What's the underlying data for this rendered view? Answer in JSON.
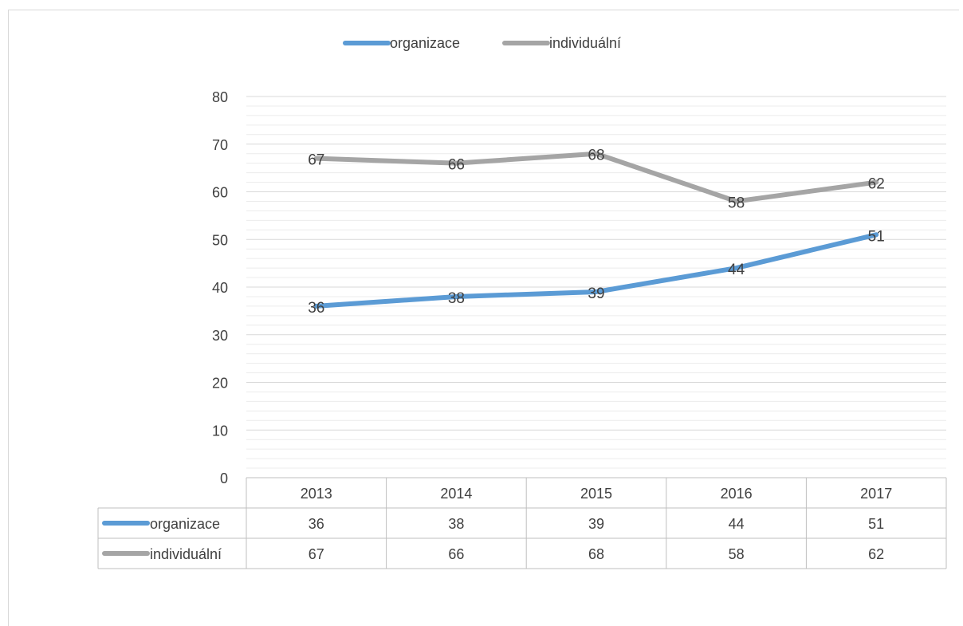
{
  "chart_data": {
    "type": "line",
    "title": "",
    "xlabel": "",
    "ylabel": "",
    "categories": [
      "2013",
      "2014",
      "2015",
      "2016",
      "2017"
    ],
    "series": [
      {
        "name": "organizace",
        "color": "#5b9bd5",
        "values": [
          36,
          38,
          39,
          44,
          51
        ]
      },
      {
        "name": "individuální",
        "color": "#a5a5a5",
        "values": [
          67,
          66,
          68,
          58,
          62
        ]
      }
    ],
    "ylim": [
      0,
      80
    ],
    "yticks": [
      "0",
      "10",
      "20",
      "30",
      "40",
      "50",
      "60",
      "70",
      "80"
    ],
    "grid": true,
    "minor_grid": true,
    "legend": "top-center",
    "data_labels": true,
    "data_table": true
  }
}
